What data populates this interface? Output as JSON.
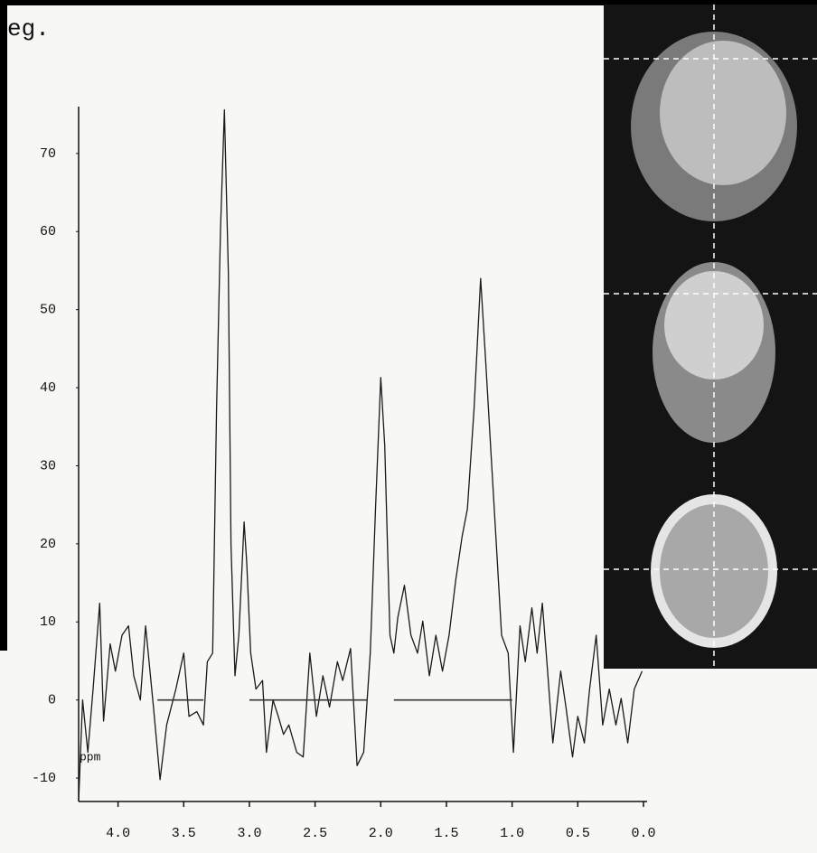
{
  "chart_data": {
    "type": "line",
    "title": "eg.",
    "x_label": "ppm",
    "series": [
      {
        "color": "#1a1a1a",
        "x": [
          4.3,
          4.27,
          4.23,
          4.19,
          4.14,
          4.11,
          4.06,
          4.02,
          3.97,
          3.92,
          3.88,
          3.83,
          3.79,
          3.73,
          3.68,
          3.63,
          3.56,
          3.5,
          3.46,
          3.4,
          3.35,
          3.32,
          3.28,
          3.25,
          3.22,
          3.19,
          3.16,
          3.14,
          3.11,
          3.08,
          3.04,
          3.02,
          2.99,
          2.95,
          2.9,
          2.87,
          2.82,
          2.78,
          2.74,
          2.7,
          2.64,
          2.59,
          2.54,
          2.49,
          2.44,
          2.39,
          2.33,
          2.29,
          2.23,
          2.18,
          2.13,
          2.08,
          2.04,
          2.0,
          1.97,
          1.93,
          1.9,
          1.87,
          1.82,
          1.77,
          1.72,
          1.68,
          1.63,
          1.58,
          1.53,
          1.48,
          1.43,
          1.38,
          1.34,
          1.29,
          1.24,
          1.2,
          1.16,
          1.12,
          1.08,
          1.03,
          0.99,
          0.94,
          0.9,
          0.85,
          0.81,
          0.77,
          0.73,
          0.69,
          0.63,
          0.59,
          0.54,
          0.5,
          0.45,
          0.41,
          0.36,
          0.31,
          0.26,
          0.21,
          0.17,
          0.12,
          0.07,
          0.01
        ],
        "values": [
          -13,
          0,
          -6.7,
          1.4,
          12.4,
          -2.7,
          7.2,
          3.7,
          8.3,
          9.5,
          3.1,
          0,
          9.5,
          -0.9,
          -10.2,
          -3.2,
          1.4,
          6,
          -2.1,
          -1.5,
          -3.2,
          4.9,
          6,
          37.2,
          60.3,
          75.6,
          54.6,
          19.9,
          3.1,
          8.3,
          22.8,
          17.6,
          6,
          1.4,
          2.5,
          -6.7,
          0,
          -2.1,
          -4.4,
          -3.2,
          -6.7,
          -7.3,
          6,
          -2.1,
          3.1,
          -0.9,
          4.9,
          2.5,
          6.6,
          -8.4,
          -6.7,
          6,
          24.5,
          41.3,
          32.6,
          8.3,
          6,
          10.6,
          14.7,
          8.3,
          6,
          10.1,
          3.1,
          8.3,
          3.7,
          8.3,
          15.3,
          21,
          24.5,
          37.2,
          54,
          43,
          31.4,
          19.9,
          8.3,
          6,
          -6.7,
          9.5,
          4.9,
          11.8,
          6,
          12.4,
          3.7,
          -5.5,
          3.7,
          -0.9,
          -7.3,
          -2.1,
          -5.5,
          1.4,
          8.3,
          -3.2,
          1.4,
          -3.2,
          0.2,
          -5.5,
          1.4,
          3.7
        ]
      },
      {
        "color": "#333333",
        "x": [
          3.7,
          3.35,
          3.3,
          3.0,
          2.1,
          1.95,
          1.9,
          1.0
        ],
        "values": [
          0,
          0,
          null,
          0,
          0,
          null,
          0,
          0
        ]
      }
    ],
    "xlim": [
      4.3,
      0
    ],
    "ylim": [
      -13,
      76
    ],
    "xticks": [
      {
        "value": 4,
        "label": "4.0"
      },
      {
        "value": 3.5,
        "label": "3.5"
      },
      {
        "value": 3,
        "label": "3.0"
      },
      {
        "value": 2.5,
        "label": "2.5"
      },
      {
        "value": 2,
        "label": "2.0"
      },
      {
        "value": 1.5,
        "label": "1.5"
      },
      {
        "value": 1,
        "label": "1.0"
      },
      {
        "value": 0.5,
        "label": "0.5"
      },
      {
        "value": 0,
        "label": "0.0"
      }
    ],
    "yticks": [
      -10,
      0,
      10,
      20,
      30,
      40,
      50,
      60,
      70
    ]
  }
}
